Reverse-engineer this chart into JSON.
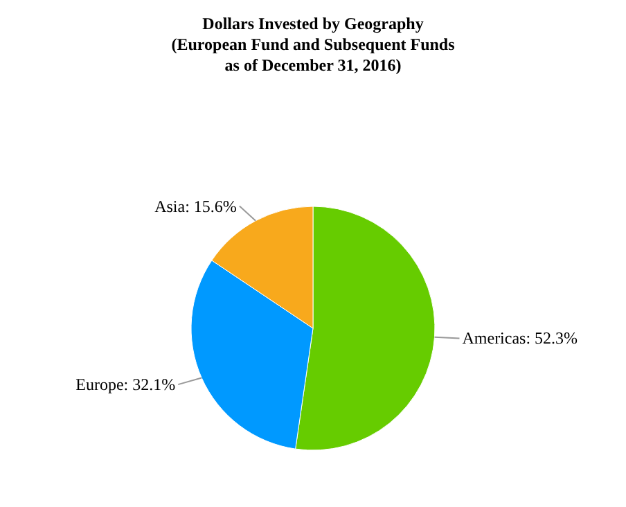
{
  "chart_data": {
    "type": "pie",
    "title": "Dollars Invested by Geography\n(European Fund and Subsequent Funds\nas of December 31, 2016)",
    "categories": [
      "Americas",
      "Europe",
      "Asia"
    ],
    "values": [
      52.3,
      32.1,
      15.6
    ],
    "colors": [
      "#66cc00",
      "#0099ff",
      "#f8a91c"
    ],
    "value_labels": [
      "52.3%",
      "32.1%",
      "15.6%"
    ],
    "legend": false
  }
}
